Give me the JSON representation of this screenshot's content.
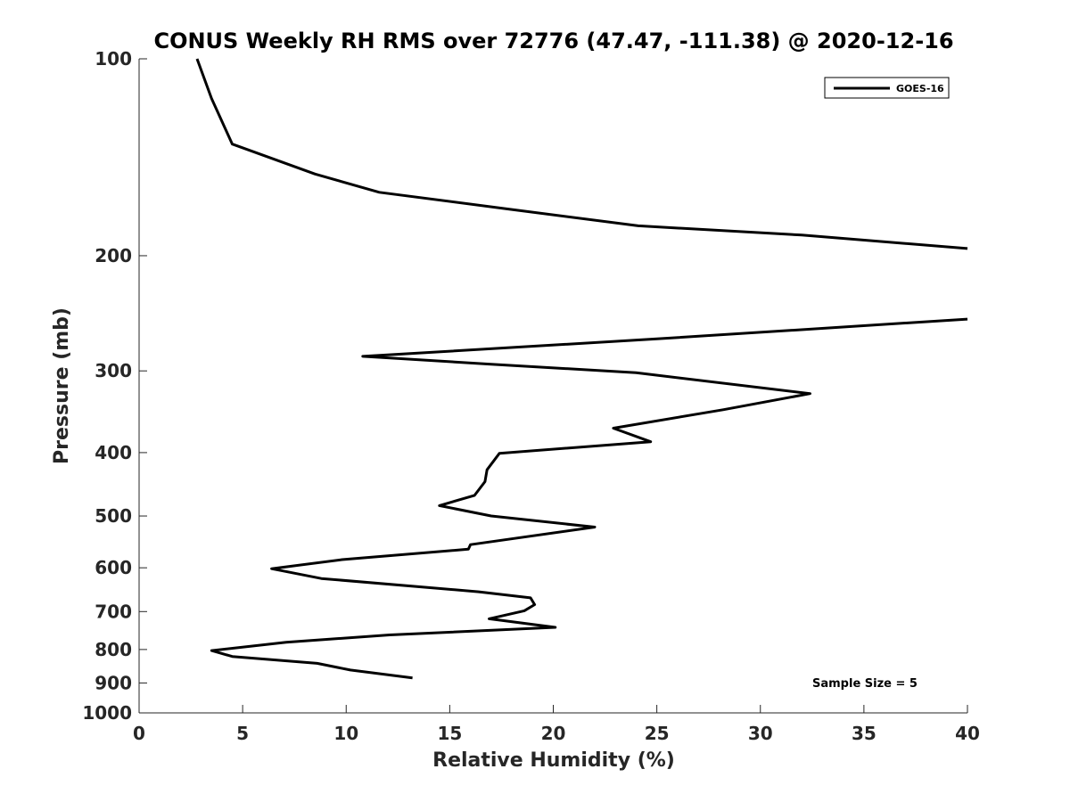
{
  "chart_data": {
    "type": "line",
    "title": "CONUS Weekly RH RMS over 72776 (47.47, -111.38) @ 2020-12-16",
    "xlabel": "Relative Humidity (%)",
    "ylabel": "Pressure (mb)",
    "xlim": [
      0,
      40
    ],
    "ylim": [
      100,
      1000
    ],
    "y_scale": "log",
    "y_reversed": true,
    "x_ticks": [
      0,
      5,
      10,
      15,
      20,
      25,
      30,
      35,
      40
    ],
    "y_ticks": [
      100,
      200,
      300,
      400,
      500,
      600,
      700,
      800,
      900,
      1000
    ],
    "grid": false,
    "legend_position": "top-right",
    "annotation": "Sample Size = 5",
    "series": [
      {
        "name": "GOES-16",
        "color": "#000000",
        "segments": [
          [
            [
              2.8,
              100
            ],
            [
              3.5,
              115
            ],
            [
              4.5,
              135
            ],
            [
              8.5,
              150
            ],
            [
              11.6,
              160
            ],
            [
              18,
              170
            ],
            [
              24.1,
              180
            ],
            [
              32,
              186
            ],
            [
              40,
              195
            ]
          ],
          [
            [
              40,
              250
            ],
            [
              25,
              268
            ],
            [
              10.8,
              285
            ],
            [
              17,
              293
            ],
            [
              24,
              302
            ],
            [
              32.4,
              325
            ],
            [
              28.2,
              344
            ],
            [
              22.9,
              367
            ],
            [
              24.7,
              385
            ],
            [
              17.4,
              401
            ],
            [
              16.8,
              425
            ],
            [
              16.7,
              443
            ],
            [
              16.2,
              465
            ],
            [
              14.5,
              482
            ],
            [
              17,
              500
            ],
            [
              22,
              520
            ],
            [
              16,
              553
            ],
            [
              15.9,
              562
            ],
            [
              9.8,
              583
            ],
            [
              6.4,
              602
            ],
            [
              8.8,
              623
            ],
            [
              16.4,
              653
            ],
            [
              18.9,
              667
            ],
            [
              19.1,
              683
            ],
            [
              18.6,
              698
            ],
            [
              16.9,
              718
            ],
            [
              20.1,
              740
            ],
            [
              12.1,
              760
            ],
            [
              7.1,
              780
            ],
            [
              3.5,
              803
            ],
            [
              4.5,
              820
            ],
            [
              8.6,
              840
            ],
            [
              10.2,
              860
            ],
            [
              13.2,
              884
            ]
          ]
        ]
      }
    ]
  }
}
